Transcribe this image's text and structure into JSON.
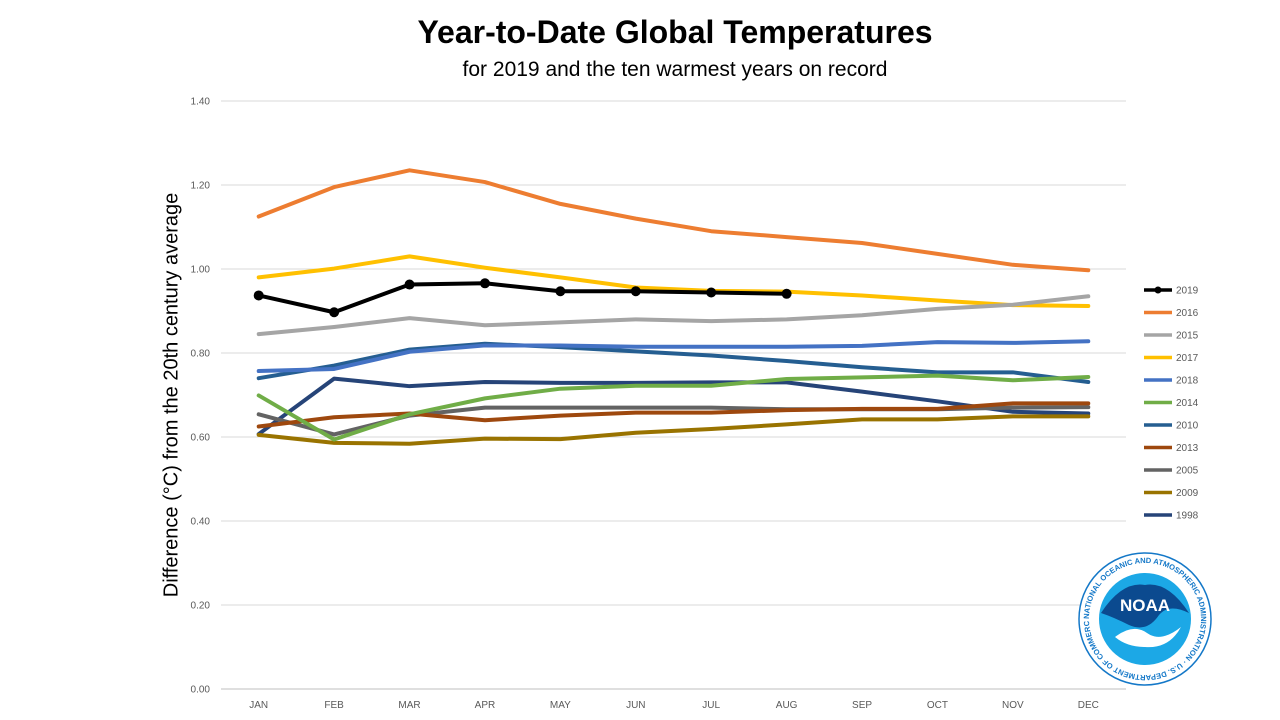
{
  "chart_data": {
    "type": "line",
    "title": "Year-to-Date Global Temperatures",
    "subtitle": "for 2019 and the ten warmest years on record",
    "ylabel": "Difference (°C) from the 20th century average",
    "xlabel": "",
    "categories": [
      "JAN",
      "FEB",
      "MAR",
      "APR",
      "MAY",
      "JUN",
      "JUL",
      "AUG",
      "SEP",
      "OCT",
      "NOV",
      "DEC"
    ],
    "ylim": [
      0,
      1.4
    ],
    "yticks": [
      "0.00",
      "0.20",
      "0.40",
      "0.60",
      "0.80",
      "1.00",
      "1.20",
      "1.40"
    ],
    "grid": true,
    "legend_position": "right",
    "series": [
      {
        "name": "2019",
        "color": "#000000",
        "markers": true,
        "values": [
          0.937,
          0.897,
          0.963,
          0.966,
          0.947,
          0.947,
          0.944,
          0.941,
          null,
          null,
          null,
          null
        ]
      },
      {
        "name": "2016",
        "color": "#ED7D31",
        "values": [
          1.125,
          1.195,
          1.235,
          1.207,
          1.155,
          1.12,
          1.09,
          1.076,
          1.062,
          1.036,
          1.01,
          0.997
        ]
      },
      {
        "name": "2015",
        "color": "#A5A5A5",
        "values": [
          0.845,
          0.862,
          0.883,
          0.866,
          0.873,
          0.88,
          0.876,
          0.88,
          0.89,
          0.905,
          0.915,
          0.935
        ]
      },
      {
        "name": "2017",
        "color": "#FFC000",
        "values": [
          0.98,
          1.001,
          1.03,
          1.003,
          0.98,
          0.956,
          0.948,
          0.946,
          0.937,
          0.925,
          0.914,
          0.912
        ]
      },
      {
        "name": "2018",
        "color": "#4472C4",
        "values": [
          0.757,
          0.762,
          0.803,
          0.818,
          0.818,
          0.815,
          0.815,
          0.815,
          0.817,
          0.826,
          0.824,
          0.828
        ]
      },
      {
        "name": "2014",
        "color": "#70AD47",
        "values": [
          0.699,
          0.594,
          0.654,
          0.692,
          0.715,
          0.722,
          0.722,
          0.738,
          0.742,
          0.746,
          0.735,
          0.743
        ]
      },
      {
        "name": "2010",
        "color": "#255E91",
        "values": [
          0.74,
          0.77,
          0.808,
          0.822,
          0.814,
          0.804,
          0.794,
          0.781,
          0.766,
          0.754,
          0.754,
          0.731
        ]
      },
      {
        "name": "2013",
        "color": "#9E480E",
        "values": [
          0.625,
          0.647,
          0.656,
          0.64,
          0.651,
          0.658,
          0.658,
          0.664,
          0.667,
          0.667,
          0.68,
          0.68
        ]
      },
      {
        "name": "2005",
        "color": "#636363",
        "values": [
          0.654,
          0.606,
          0.651,
          0.67,
          0.67,
          0.67,
          0.67,
          0.666,
          0.666,
          0.666,
          0.67,
          0.671
        ]
      },
      {
        "name": "2009",
        "color": "#997300",
        "values": [
          0.605,
          0.586,
          0.584,
          0.596,
          0.595,
          0.61,
          0.619,
          0.63,
          0.642,
          0.642,
          0.649,
          0.649
        ]
      },
      {
        "name": "1998",
        "color": "#264478",
        "values": [
          0.607,
          0.739,
          0.721,
          0.731,
          0.729,
          0.729,
          0.73,
          0.73,
          0.708,
          0.685,
          0.66,
          0.656
        ]
      }
    ]
  },
  "logo": {
    "name": "noaa-logo",
    "text": "NOAA",
    "ring_text": "NATIONAL OCEANIC AND ATMOSPHERIC ADMINISTRATION · U.S. DEPARTMENT OF COMMERCE ·"
  }
}
